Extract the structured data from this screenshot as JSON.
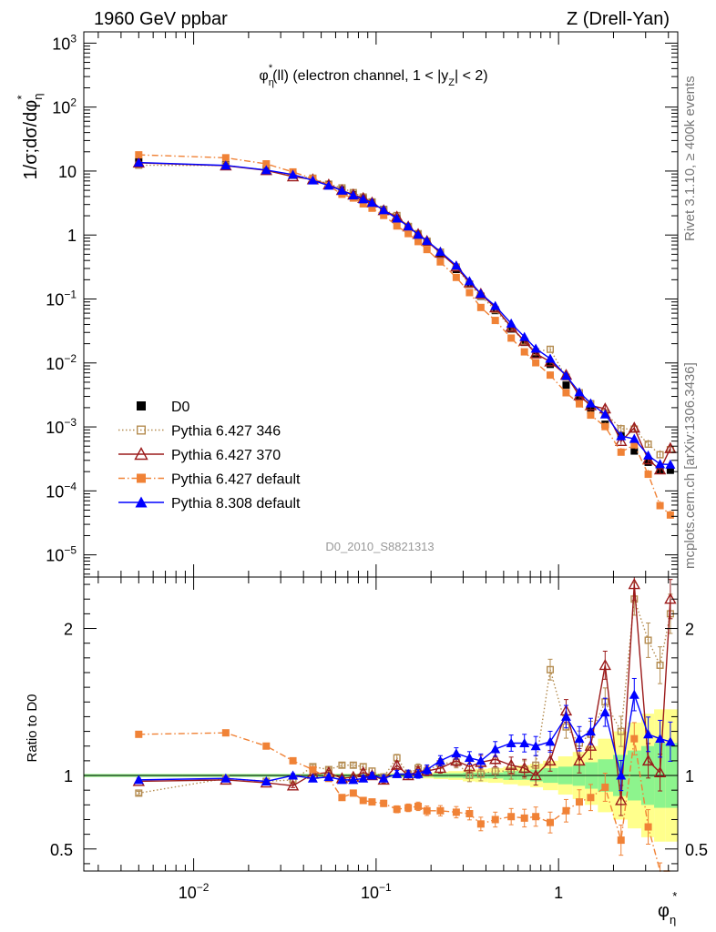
{
  "header": {
    "left": "1960 GeV ppbar",
    "right": "Z (Drell-Yan)"
  },
  "side_labels": {
    "rivet": "Rivet 3.1.10, ≥ 400k events",
    "mcplots": "mcplots.cern.ch [arXiv:1306.3436]"
  },
  "chart_data": {
    "type": "line",
    "title": "φ*_η(ll) (electron channel, 1 < |y_Z| < 2)",
    "analysis_id": "D0_2010_S8821313",
    "x_label": "φ*_η",
    "x_scale": "log",
    "xlim": [
      0.0025,
      4.5
    ],
    "x_tick_labels": [
      "10^-2",
      "10^-1",
      "1"
    ],
    "main_panel": {
      "ylabel": "1/σ;dσ/dφ*_η",
      "y_scale": "log",
      "ylim": [
        4.5e-06,
        1500
      ],
      "y_tick_labels": [
        "10^-5",
        "10^-4",
        "10^-3",
        "10^-2",
        "10^-1",
        "1",
        "10",
        "10^2",
        "10^3"
      ]
    },
    "ratio_panel": {
      "ylabel": "Ratio to D0",
      "ylim": [
        0.35,
        2.35
      ],
      "y_tick_labels": [
        "0.5",
        "1",
        "2"
      ]
    },
    "legend_position": "lower-left",
    "x": [
      0.005,
      0.015,
      0.025,
      0.035,
      0.045,
      0.055,
      0.065,
      0.075,
      0.085,
      0.095,
      0.11,
      0.13,
      0.15,
      0.17,
      0.19,
      0.225,
      0.275,
      0.325,
      0.375,
      0.45,
      0.55,
      0.65,
      0.75,
      0.9,
      1.1,
      1.3,
      1.5,
      1.8,
      2.2,
      2.6,
      3.1,
      3.6,
      4.1
    ],
    "series": [
      {
        "name": "D0",
        "color": "#000000",
        "marker": "square-filled",
        "values": [
          14,
          12.5,
          10.8,
          8.8,
          7.3,
          6.0,
          5.1,
          4.3,
          3.7,
          3.2,
          2.5,
          1.8,
          1.35,
          1.0,
          0.78,
          0.5,
          0.29,
          0.17,
          0.11,
          0.066,
          0.034,
          0.021,
          0.014,
          0.0095,
          0.0045,
          0.0028,
          0.0018,
          0.0011,
          0.00072,
          0.00042,
          0.00028,
          0.00021,
          0.00021
        ],
        "ratio": [
          1,
          1,
          1,
          1,
          1,
          1,
          1,
          1,
          1,
          1,
          1,
          1,
          1,
          1,
          1,
          1,
          1,
          1,
          1,
          1,
          1,
          1,
          1,
          1,
          1,
          1,
          1,
          1,
          1,
          1,
          1,
          1,
          1
        ]
      },
      {
        "name": "Pythia 6.427 346",
        "color": "#b48c50",
        "marker": "square-open",
        "line": "dotted",
        "ratio": [
          0.88,
          0.98,
          0.96,
          0.97,
          1.06,
          1.04,
          1.07,
          1.07,
          1.06,
          1.03,
          0.99,
          1.12,
          1.01,
          1.05,
          1.03,
          1.08,
          1.09,
          1.0,
          1.01,
          1.03,
          1.03,
          1.04,
          1.07,
          1.72,
          1.33,
          1.22,
          1.28,
          1.5,
          1.3,
          2.2,
          1.92,
          1.75,
          2.1
        ]
      },
      {
        "name": "Pythia 6.427 370",
        "color": "#9b1b1b",
        "marker": "triangle-open",
        "line": "solid",
        "ratio": [
          0.96,
          0.97,
          0.95,
          0.93,
          1.01,
          1.02,
          0.98,
          0.99,
          1.02,
          1.0,
          0.97,
          1.07,
          1.0,
          1.03,
          1.03,
          1.05,
          1.1,
          1.06,
          1.09,
          1.11,
          1.07,
          1.05,
          1.0,
          1.1,
          1.44,
          1.1,
          1.2,
          1.75,
          0.83,
          2.3,
          1.1,
          1.02,
          2.2
        ]
      },
      {
        "name": "Pythia 6.427 default",
        "color": "#f08236",
        "marker": "square-filled",
        "line": "dashdot",
        "ratio": [
          1.28,
          1.29,
          1.2,
          1.1,
          1.04,
          0.98,
          0.85,
          0.88,
          0.83,
          0.82,
          0.81,
          0.77,
          0.78,
          0.79,
          0.76,
          0.76,
          0.75,
          0.74,
          0.67,
          0.7,
          0.72,
          0.71,
          0.72,
          0.68,
          0.76,
          0.82,
          0.85,
          0.92,
          0.56,
          1.25,
          0.65,
          0.28,
          0.2
        ]
      },
      {
        "name": "Pythia 8.308 default",
        "color": "#0000ff",
        "marker": "triangle-filled",
        "line": "solid",
        "ratio": [
          0.97,
          0.98,
          0.96,
          1.0,
          0.98,
          0.99,
          0.97,
          0.97,
          0.98,
          1.0,
          0.98,
          1.01,
          1.01,
          1.01,
          1.04,
          1.1,
          1.15,
          1.12,
          1.1,
          1.18,
          1.22,
          1.22,
          1.2,
          1.23,
          1.4,
          1.25,
          1.3,
          1.43,
          1.0,
          1.55,
          1.28,
          1.25,
          1.23
        ]
      }
    ],
    "uncertainty_bands": {
      "inner_color": "#8df48d",
      "outer_color": "#ffff8c",
      "inner": [
        0.01,
        0.01,
        0.01,
        0.01,
        0.01,
        0.01,
        0.01,
        0.01,
        0.01,
        0.01,
        0.01,
        0.01,
        0.01,
        0.01,
        0.01,
        0.015,
        0.015,
        0.02,
        0.02,
        0.02,
        0.03,
        0.03,
        0.04,
        0.05,
        0.06,
        0.07,
        0.09,
        0.11,
        0.14,
        0.17,
        0.2,
        0.22,
        0.22
      ],
      "outer": [
        0.01,
        0.01,
        0.01,
        0.01,
        0.01,
        0.01,
        0.012,
        0.012,
        0.012,
        0.014,
        0.014,
        0.016,
        0.018,
        0.02,
        0.02,
        0.025,
        0.03,
        0.04,
        0.045,
        0.05,
        0.06,
        0.07,
        0.08,
        0.1,
        0.13,
        0.16,
        0.2,
        0.25,
        0.3,
        0.36,
        0.42,
        0.45,
        0.45
      ]
    }
  }
}
